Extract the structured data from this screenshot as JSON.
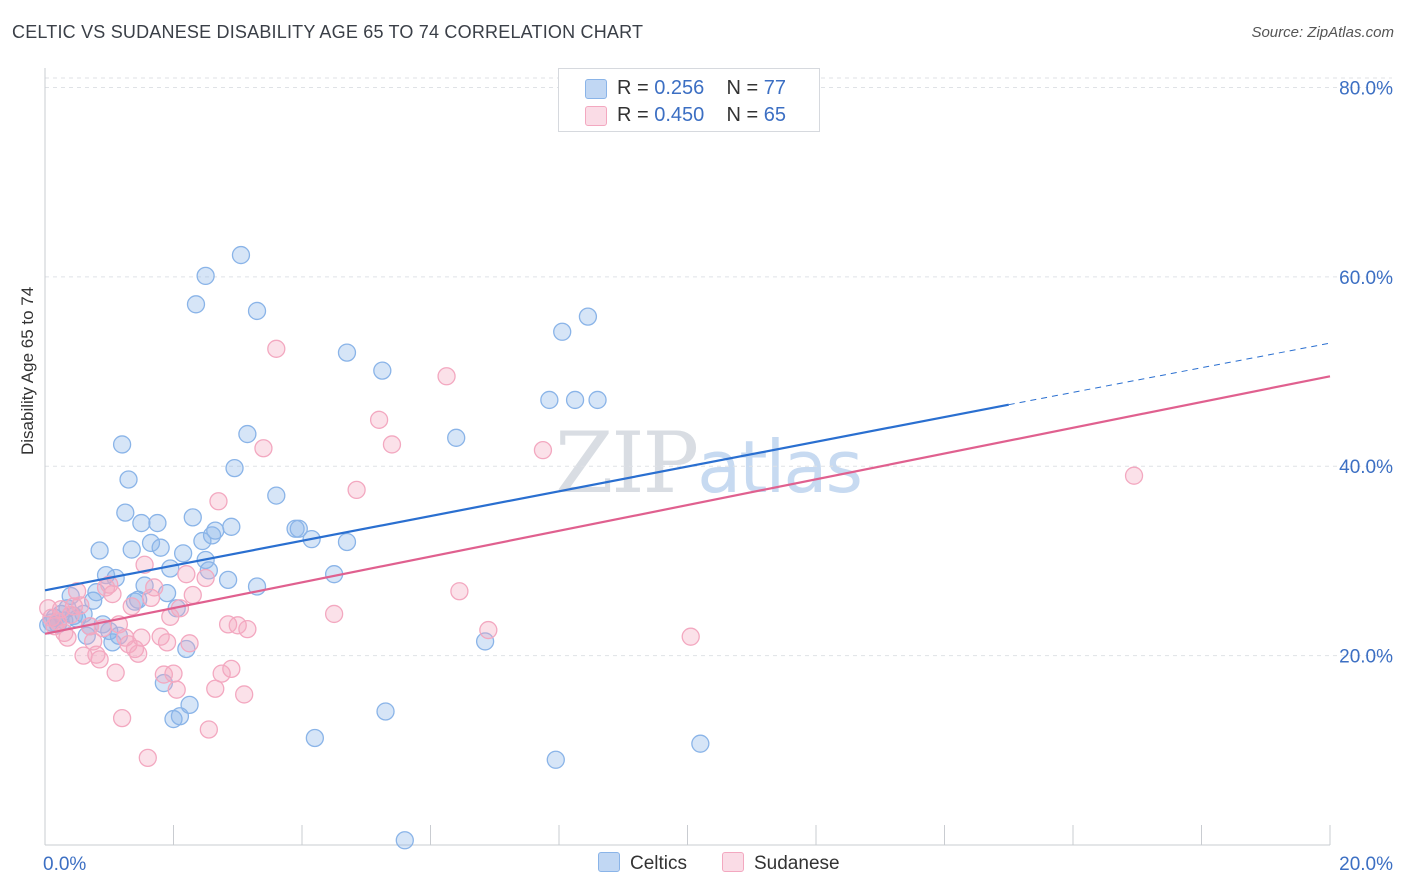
{
  "chart_data": {
    "type": "scatter",
    "title": "CELTIC VS SUDANESE DISABILITY AGE 65 TO 74 CORRELATION CHART",
    "source": "Source: ZipAtlas.com",
    "ylabel": "Disability Age 65 to 74",
    "xlabel": "",
    "xlim": [
      0,
      20
    ],
    "ylim": [
      0,
      81
    ],
    "x_ticks": [
      "0.0%",
      "20.0%"
    ],
    "y_ticks": [
      {
        "value": 20,
        "label": "20.0%"
      },
      {
        "value": 40,
        "label": "40.0%"
      },
      {
        "value": 60,
        "label": "60.0%"
      },
      {
        "value": 80,
        "label": "80.0%"
      }
    ],
    "grid": true,
    "legend_position": "top-center",
    "watermark": "ZIPatlas",
    "series": [
      {
        "name": "Celtics",
        "color": "#8ab4e8",
        "line_color": "#2a6fd0",
        "r_label": "R = ",
        "r": "0.256",
        "n_label": "N = ",
        "n": "77",
        "trend": {
          "x0": 0,
          "y0": 26.9,
          "x1": 15.0,
          "y1": 46.5,
          "dash_to_x": 20,
          "dash_to_y": 53
        },
        "points": [
          [
            0.1,
            23.5
          ],
          [
            0.15,
            24.0
          ],
          [
            0.2,
            23.3
          ],
          [
            0.25,
            24.4
          ],
          [
            0.3,
            23.7
          ],
          [
            0.35,
            25.0
          ],
          [
            0.4,
            26.3
          ],
          [
            0.45,
            24.2
          ],
          [
            0.5,
            23.9
          ],
          [
            0.6,
            24.4
          ],
          [
            0.65,
            22.1
          ],
          [
            0.7,
            23.1
          ],
          [
            0.75,
            25.8
          ],
          [
            0.8,
            26.7
          ],
          [
            0.85,
            31.1
          ],
          [
            0.9,
            23.3
          ],
          [
            0.95,
            28.5
          ],
          [
            1.0,
            22.6
          ],
          [
            1.05,
            21.4
          ],
          [
            1.1,
            28.2
          ],
          [
            1.15,
            22.1
          ],
          [
            1.2,
            42.3
          ],
          [
            1.25,
            35.1
          ],
          [
            1.3,
            38.6
          ],
          [
            1.35,
            31.2
          ],
          [
            1.4,
            25.7
          ],
          [
            1.45,
            25.9
          ],
          [
            1.5,
            34.0
          ],
          [
            1.55,
            27.4
          ],
          [
            1.65,
            31.9
          ],
          [
            1.75,
            34.0
          ],
          [
            1.8,
            31.4
          ],
          [
            1.85,
            17.1
          ],
          [
            1.9,
            26.6
          ],
          [
            1.95,
            29.2
          ],
          [
            2.0,
            13.3
          ],
          [
            2.05,
            25.0
          ],
          [
            2.1,
            13.6
          ],
          [
            2.15,
            30.8
          ],
          [
            2.2,
            20.7
          ],
          [
            2.25,
            14.8
          ],
          [
            2.3,
            34.6
          ],
          [
            2.35,
            57.1
          ],
          [
            2.45,
            32.1
          ],
          [
            2.5,
            30.1
          ],
          [
            2.5,
            60.1
          ],
          [
            2.55,
            29.0
          ],
          [
            2.6,
            32.7
          ],
          [
            2.65,
            33.2
          ],
          [
            2.85,
            28.0
          ],
          [
            2.9,
            33.6
          ],
          [
            2.95,
            39.8
          ],
          [
            3.05,
            62.3
          ],
          [
            3.15,
            43.4
          ],
          [
            3.3,
            56.4
          ],
          [
            3.3,
            27.3
          ],
          [
            3.6,
            36.9
          ],
          [
            3.9,
            33.4
          ],
          [
            3.95,
            33.4
          ],
          [
            4.15,
            32.3
          ],
          [
            4.2,
            11.3
          ],
          [
            4.5,
            28.6
          ],
          [
            4.7,
            32.0
          ],
          [
            4.7,
            52.0
          ],
          [
            5.25,
            50.1
          ],
          [
            5.3,
            14.1
          ],
          [
            5.6,
            0.5
          ],
          [
            6.4,
            43.0
          ],
          [
            6.85,
            21.5
          ],
          [
            7.85,
            47.0
          ],
          [
            7.95,
            9.0
          ],
          [
            8.05,
            54.2
          ],
          [
            8.25,
            47.0
          ],
          [
            8.45,
            55.8
          ],
          [
            8.6,
            47.0
          ],
          [
            10.2,
            10.7
          ],
          [
            0.05,
            23.2
          ]
        ]
      },
      {
        "name": "Sudanese",
        "color": "#f3a8c0",
        "line_color": "#e0608f",
        "r_label": "R = ",
        "r": "0.450",
        "n_label": "N = ",
        "n": "65",
        "trend": {
          "x0": 0,
          "y0": 22.3,
          "x1": 20,
          "y1": 49.5
        },
        "points": [
          [
            0.05,
            25.0
          ],
          [
            0.1,
            24.0
          ],
          [
            0.15,
            23.1
          ],
          [
            0.2,
            23.6
          ],
          [
            0.25,
            24.9
          ],
          [
            0.3,
            22.4
          ],
          [
            0.35,
            21.9
          ],
          [
            0.4,
            24.3
          ],
          [
            0.45,
            25.2
          ],
          [
            0.5,
            26.8
          ],
          [
            0.55,
            25.3
          ],
          [
            0.6,
            20.0
          ],
          [
            0.7,
            23.1
          ],
          [
            0.75,
            21.5
          ],
          [
            0.8,
            20.1
          ],
          [
            0.85,
            19.6
          ],
          [
            0.9,
            22.9
          ],
          [
            0.95,
            27.2
          ],
          [
            1.0,
            27.5
          ],
          [
            1.05,
            26.5
          ],
          [
            1.1,
            18.2
          ],
          [
            1.15,
            23.3
          ],
          [
            1.2,
            13.4
          ],
          [
            1.25,
            21.9
          ],
          [
            1.3,
            21.2
          ],
          [
            1.35,
            25.2
          ],
          [
            1.4,
            20.7
          ],
          [
            1.45,
            20.2
          ],
          [
            1.5,
            21.9
          ],
          [
            1.55,
            29.6
          ],
          [
            1.6,
            9.2
          ],
          [
            1.65,
            26.1
          ],
          [
            1.7,
            27.2
          ],
          [
            1.8,
            22.0
          ],
          [
            1.85,
            18.0
          ],
          [
            1.9,
            21.4
          ],
          [
            1.95,
            24.1
          ],
          [
            2.0,
            18.1
          ],
          [
            2.05,
            16.4
          ],
          [
            2.1,
            25.0
          ],
          [
            2.2,
            28.6
          ],
          [
            2.25,
            21.3
          ],
          [
            2.3,
            26.4
          ],
          [
            2.5,
            28.2
          ],
          [
            2.55,
            12.2
          ],
          [
            2.65,
            16.5
          ],
          [
            2.7,
            36.3
          ],
          [
            2.75,
            18.1
          ],
          [
            2.85,
            23.3
          ],
          [
            2.9,
            18.6
          ],
          [
            3.0,
            23.2
          ],
          [
            3.1,
            15.9
          ],
          [
            3.15,
            22.8
          ],
          [
            3.4,
            41.9
          ],
          [
            3.6,
            52.4
          ],
          [
            4.5,
            24.4
          ],
          [
            4.85,
            37.5
          ],
          [
            5.2,
            44.9
          ],
          [
            5.4,
            42.3
          ],
          [
            6.25,
            49.5
          ],
          [
            6.45,
            26.8
          ],
          [
            6.9,
            22.7
          ],
          [
            7.75,
            41.7
          ],
          [
            10.05,
            22.0
          ],
          [
            16.95,
            39.0
          ]
        ]
      }
    ]
  }
}
